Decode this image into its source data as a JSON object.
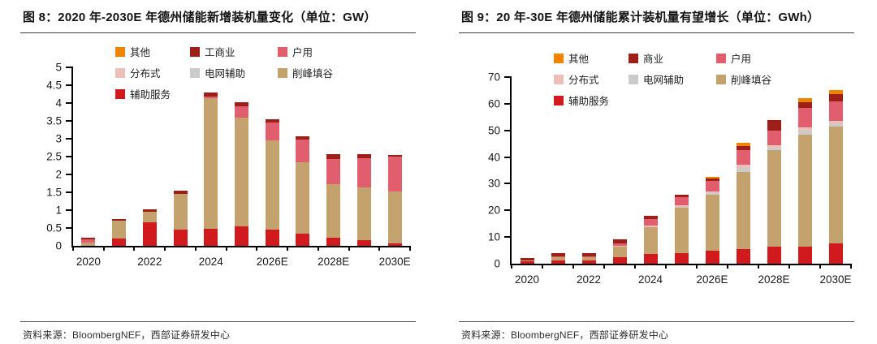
{
  "footer": {
    "text": "资料来源：BloombergNEF，西部证券研发中心"
  },
  "chart_data": [
    {
      "type": "bar",
      "stacked": true,
      "title": "图 8：2020 年-2030E 年德州储能新增装机量变化（单位：GW）",
      "unit": "GW",
      "legend_position": "top",
      "grid": false,
      "categories": [
        "2020",
        "2021",
        "2022",
        "2023",
        "2024",
        "2025E",
        "2026E",
        "2027E",
        "2028E",
        "2029E",
        "2030E"
      ],
      "x_tick_labels_shown": [
        "2020",
        "2022",
        "2024",
        "2026E",
        "2028E",
        "2030E"
      ],
      "ylim": [
        0,
        5
      ],
      "y_step": 0.5,
      "stack_order_bottom_to_top": [
        "辅助服务",
        "削峰填谷",
        "电网辅助",
        "分布式",
        "户用",
        "工商业",
        "其他"
      ],
      "series": [
        {
          "name": "其他",
          "color": "#F08300",
          "values": [
            0,
            0,
            0,
            0,
            0,
            0,
            0,
            0,
            0,
            0,
            0
          ]
        },
        {
          "name": "工商业",
          "color": "#9C2018",
          "values": [
            0.04,
            0.05,
            0.08,
            0.1,
            0.12,
            0.12,
            0.1,
            0.1,
            0.13,
            0.12,
            0.06
          ]
        },
        {
          "name": "户用",
          "color": "#E05E6E",
          "values": [
            0.1,
            0,
            0,
            0,
            0.05,
            0.3,
            0.5,
            0.65,
            0.72,
            0.82,
            0.97
          ]
        },
        {
          "name": "分布式",
          "color": "#ECC0B8",
          "values": [
            0,
            0,
            0,
            0,
            0,
            0,
            0,
            0,
            0,
            0,
            0
          ]
        },
        {
          "name": "电网辅助",
          "color": "#CBCBCB",
          "values": [
            0,
            0,
            0,
            0,
            0,
            0,
            0,
            0,
            0,
            0,
            0
          ]
        },
        {
          "name": "削峰填谷",
          "color": "#C3A26E",
          "values": [
            0.08,
            0.5,
            0.3,
            1.0,
            3.65,
            3.05,
            2.5,
            2.0,
            1.5,
            1.48,
            1.45
          ]
        },
        {
          "name": "辅助服务",
          "color": "#D01A1E",
          "values": [
            0,
            0.2,
            0.65,
            0.45,
            0.48,
            0.55,
            0.45,
            0.33,
            0.22,
            0.15,
            0.07
          ]
        }
      ]
    },
    {
      "type": "bar",
      "stacked": true,
      "title": "图 9：20 年-30E 年德州储能累计装机量有望增长（单位：GWh）",
      "unit": "GWh",
      "legend_position": "top",
      "grid": false,
      "categories": [
        "2020",
        "2021",
        "2022",
        "2023",
        "2024",
        "2025E",
        "2026E",
        "2027E",
        "2028E",
        "2029E",
        "2030E"
      ],
      "x_tick_labels_shown": [
        "2020",
        "2022",
        "2024",
        "2026E",
        "2028E",
        "2030E"
      ],
      "ylim": [
        0,
        70
      ],
      "y_step": 10,
      "stack_order_bottom_to_top": [
        "辅助服务",
        "削峰填谷",
        "电网辅助",
        "分布式",
        "户用",
        "商业",
        "其他"
      ],
      "series": [
        {
          "name": "其他",
          "color": "#F08300",
          "values": [
            0,
            0,
            0,
            0,
            0,
            0,
            0.5,
            1.5,
            0,
            1.5,
            1.5
          ]
        },
        {
          "name": "商业",
          "color": "#9C2018",
          "values": [
            0.7,
            1.3,
            1.3,
            1.5,
            1.3,
            1.0,
            1.0,
            1.5,
            4.0,
            2.0,
            2.5
          ]
        },
        {
          "name": "户用",
          "color": "#E05E6E",
          "values": [
            0,
            0.3,
            0.3,
            0.7,
            2.5,
            3.0,
            4.0,
            5.5,
            5.5,
            7.5,
            7.5
          ]
        },
        {
          "name": "分布式",
          "color": "#ECC0B8",
          "values": [
            0,
            0,
            0,
            0.3,
            0.4,
            0.7,
            0.7,
            1.0,
            1.0,
            1.0,
            1.0
          ]
        },
        {
          "name": "电网辅助",
          "color": "#CBCBCB",
          "values": [
            0,
            0,
            0,
            0,
            0,
            0.3,
            0.6,
            1.5,
            1.0,
            1.5,
            1.0
          ]
        },
        {
          "name": "削峰填谷",
          "color": "#C3A26E",
          "values": [
            0.3,
            1.2,
            1.2,
            4.0,
            10.0,
            17.0,
            21.0,
            29.0,
            36.0,
            42.0,
            44.0
          ]
        },
        {
          "name": "辅助服务",
          "color": "#D01A1E",
          "values": [
            1.0,
            1.2,
            1.2,
            2.5,
            3.8,
            4.0,
            4.8,
            5.5,
            6.5,
            6.5,
            7.5
          ]
        }
      ]
    }
  ]
}
